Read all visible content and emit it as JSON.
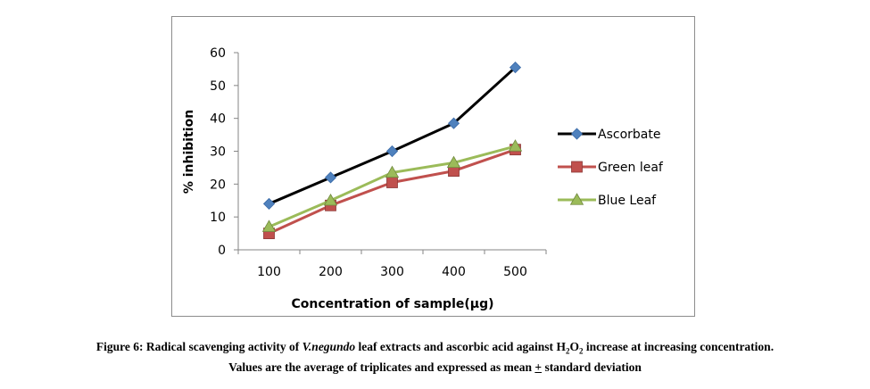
{
  "chart_data": {
    "type": "line",
    "title": "",
    "xlabel": "Concentration of sample(μg)",
    "ylabel": "% inhibition",
    "categories": [
      "100",
      "200",
      "300",
      "400",
      "500"
    ],
    "ylim": [
      0,
      60
    ],
    "yticks": [
      0,
      10,
      20,
      30,
      40,
      50,
      60
    ],
    "grid": false,
    "legend_position": "right",
    "series": [
      {
        "name": "Ascorbate",
        "values": [
          14,
          22,
          30,
          38.5,
          55.5
        ],
        "color": "#000000",
        "marker": "diamond",
        "marker_color": "#4f81bd"
      },
      {
        "name": "Green leaf",
        "values": [
          5,
          13.5,
          20.5,
          24,
          30.5
        ],
        "color": "#c0504d",
        "marker": "square",
        "marker_color": "#c0504d"
      },
      {
        "name": "Blue Leaf",
        "values": [
          7,
          15,
          23.5,
          26.5,
          31.5
        ],
        "color": "#9bbb59",
        "marker": "triangle",
        "marker_color": "#9bbb59"
      }
    ]
  },
  "caption": {
    "fig_label": "Figure 6:",
    "part1": "Radical scavenging activity of",
    "species": "V.negundo",
    "part2": "leaf extracts and ascorbic acid against",
    "h2o2_h": "H",
    "h2o2_h_sub": "2",
    "h2o2_o": "O",
    "h2o2_o_sub": "2",
    "part3": "increase at increasing concentration.",
    "line2_a": "Values are the average of triplicates and expressed as mean",
    "plusminus": "+",
    "line2_b": "standard deviation"
  }
}
